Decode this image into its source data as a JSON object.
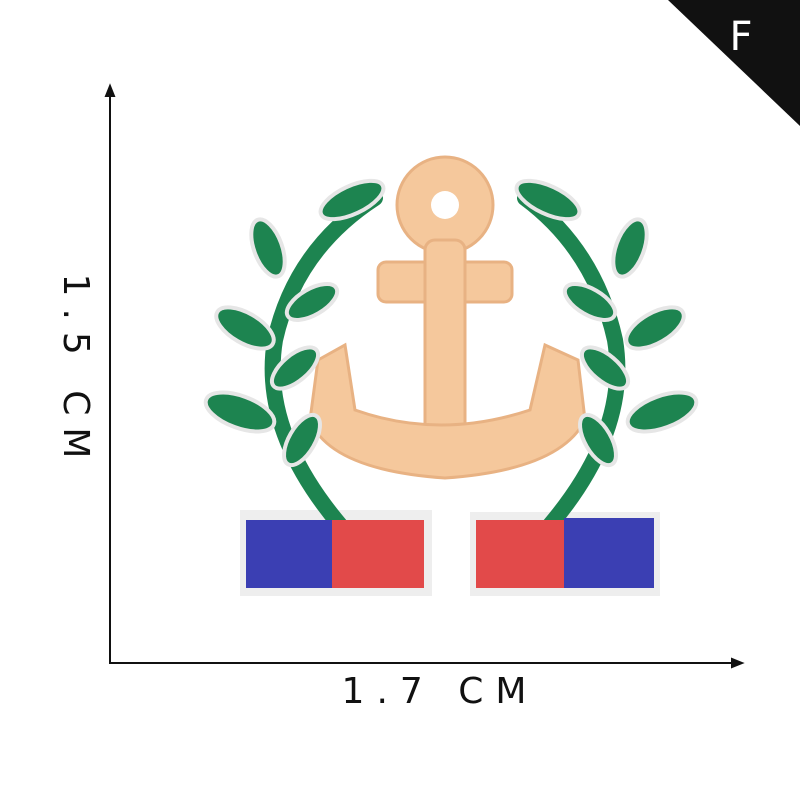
{
  "corner_label": "F",
  "dimensions": {
    "height_label": "1.5 CM",
    "width_label": "1.7 CM"
  }
}
